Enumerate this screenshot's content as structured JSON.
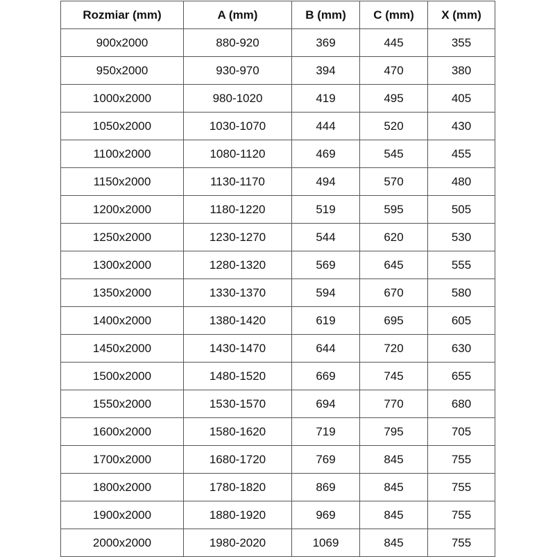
{
  "headers": [
    "Rozmiar (mm)",
    "A (mm)",
    "B (mm)",
    "C (mm)",
    "X (mm)"
  ],
  "rows": [
    [
      "900x2000",
      "880-920",
      "369",
      "445",
      "355"
    ],
    [
      "950x2000",
      "930-970",
      "394",
      "470",
      "380"
    ],
    [
      "1000x2000",
      "980-1020",
      "419",
      "495",
      "405"
    ],
    [
      "1050x2000",
      "1030-1070",
      "444",
      "520",
      "430"
    ],
    [
      "1100x2000",
      "1080-1120",
      "469",
      "545",
      "455"
    ],
    [
      "1150x2000",
      "1130-1170",
      "494",
      "570",
      "480"
    ],
    [
      "1200x2000",
      "1180-1220",
      "519",
      "595",
      "505"
    ],
    [
      "1250x2000",
      "1230-1270",
      "544",
      "620",
      "530"
    ],
    [
      "1300x2000",
      "1280-1320",
      "569",
      "645",
      "555"
    ],
    [
      "1350x2000",
      "1330-1370",
      "594",
      "670",
      "580"
    ],
    [
      "1400x2000",
      "1380-1420",
      "619",
      "695",
      "605"
    ],
    [
      "1450x2000",
      "1430-1470",
      "644",
      "720",
      "630"
    ],
    [
      "1500x2000",
      "1480-1520",
      "669",
      "745",
      "655"
    ],
    [
      "1550x2000",
      "1530-1570",
      "694",
      "770",
      "680"
    ],
    [
      "1600x2000",
      "1580-1620",
      "719",
      "795",
      "705"
    ],
    [
      "1700x2000",
      "1680-1720",
      "769",
      "845",
      "755"
    ],
    [
      "1800x2000",
      "1780-1820",
      "869",
      "845",
      "755"
    ],
    [
      "1900x2000",
      "1880-1920",
      "969",
      "845",
      "755"
    ],
    [
      "2000x2000",
      "1980-2020",
      "1069",
      "845",
      "755"
    ]
  ]
}
